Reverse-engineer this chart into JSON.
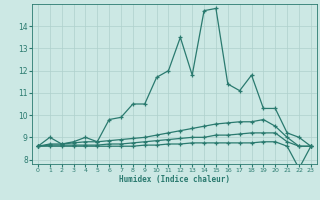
{
  "xlabel": "Humidex (Indice chaleur)",
  "x_values": [
    0,
    1,
    2,
    3,
    4,
    5,
    6,
    7,
    8,
    9,
    10,
    11,
    12,
    13,
    14,
    15,
    16,
    17,
    18,
    19,
    20,
    21,
    22,
    23
  ],
  "line1": [
    8.6,
    9.0,
    8.7,
    8.8,
    9.0,
    8.8,
    9.8,
    9.9,
    10.5,
    10.5,
    11.7,
    12.0,
    13.5,
    11.8,
    14.7,
    14.8,
    11.4,
    11.1,
    11.8,
    10.3,
    10.3,
    9.2,
    9.0,
    8.6
  ],
  "line2": [
    8.6,
    8.7,
    8.7,
    8.75,
    8.8,
    8.8,
    8.85,
    8.9,
    8.95,
    9.0,
    9.1,
    9.2,
    9.3,
    9.4,
    9.5,
    9.6,
    9.65,
    9.7,
    9.7,
    9.8,
    9.5,
    9.0,
    8.6,
    8.6
  ],
  "line3": [
    8.6,
    8.65,
    8.65,
    8.65,
    8.65,
    8.65,
    8.7,
    8.7,
    8.75,
    8.8,
    8.85,
    8.9,
    8.95,
    9.0,
    9.0,
    9.1,
    9.1,
    9.15,
    9.2,
    9.2,
    9.2,
    8.8,
    8.6,
    8.6
  ],
  "line4": [
    8.6,
    8.6,
    8.6,
    8.6,
    8.6,
    8.6,
    8.6,
    8.6,
    8.6,
    8.65,
    8.65,
    8.7,
    8.7,
    8.75,
    8.75,
    8.75,
    8.75,
    8.75,
    8.75,
    8.8,
    8.8,
    8.6,
    7.6,
    8.6
  ],
  "line_color": "#2a7a6f",
  "bg_color": "#cce8e4",
  "grid_color": "#afd1cc",
  "ylim": [
    7.8,
    15.0
  ],
  "xlim": [
    -0.5,
    23.5
  ],
  "yticks": [
    8,
    9,
    10,
    11,
    12,
    13,
    14
  ],
  "xticks": [
    0,
    1,
    2,
    3,
    4,
    5,
    6,
    7,
    8,
    9,
    10,
    11,
    12,
    13,
    14,
    15,
    16,
    17,
    18,
    19,
    20,
    21,
    22,
    23
  ]
}
